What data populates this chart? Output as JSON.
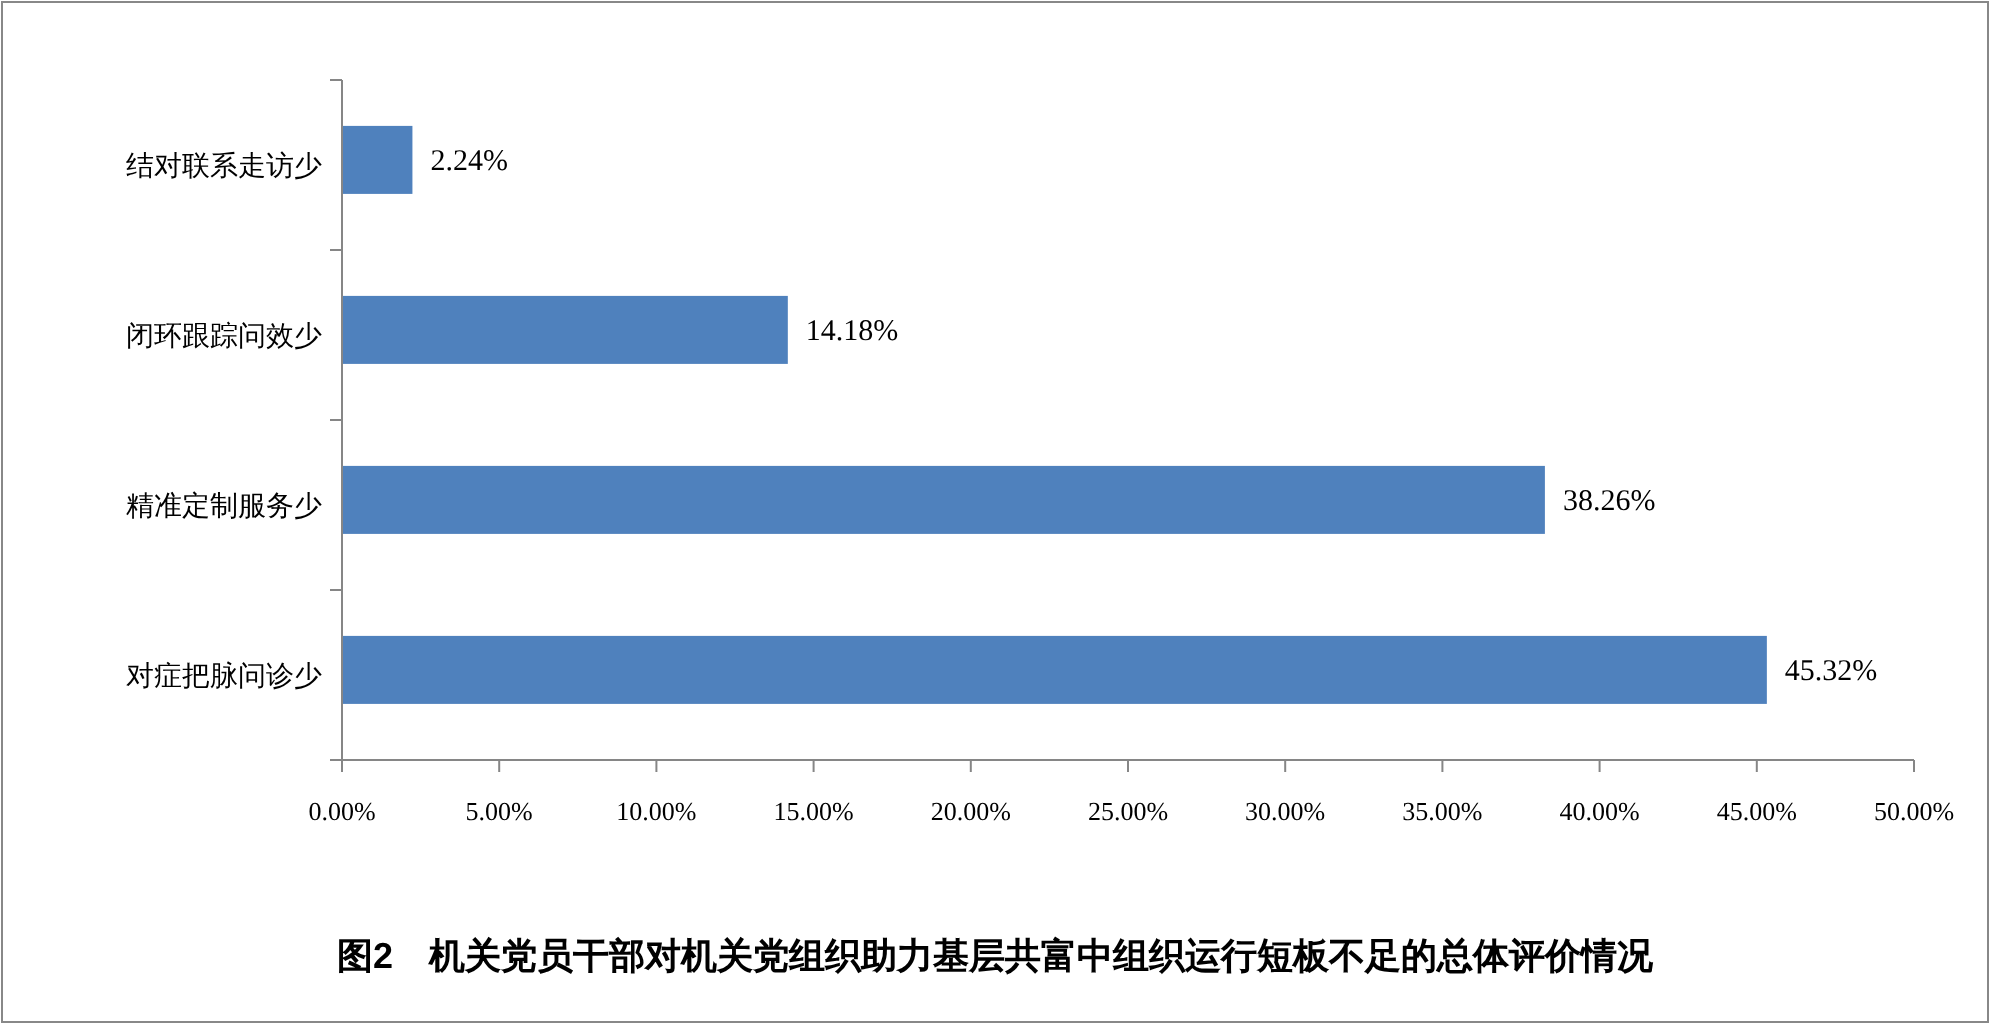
{
  "chart_data": {
    "type": "bar",
    "orientation": "horizontal",
    "title": "图2　机关党员干部对机关党组织助力基层共富中组织运行短板不足的总体评价情况",
    "categories": [
      "结对联系走访少",
      "闭环跟踪问效少",
      "精准定制服务少",
      "对症把脉问诊少"
    ],
    "values": [
      2.24,
      14.18,
      38.26,
      45.32
    ],
    "value_labels": [
      "2.24%",
      "14.18%",
      "38.26%",
      "45.32%"
    ],
    "color": "#4f81bd",
    "xlim": [
      0,
      50
    ],
    "xticks": [
      {
        "value": 0,
        "label": "0.00%"
      },
      {
        "value": 5,
        "label": "5.00%"
      },
      {
        "value": 10,
        "label": "10.00%"
      },
      {
        "value": 15,
        "label": "15.00%"
      },
      {
        "value": 20,
        "label": "20.00%"
      },
      {
        "value": 25,
        "label": "25.00%"
      },
      {
        "value": 30,
        "label": "30.00%"
      },
      {
        "value": 35,
        "label": "35.00%"
      },
      {
        "value": 40,
        "label": "40.00%"
      },
      {
        "value": 45,
        "label": "45.00%"
      },
      {
        "value": 50,
        "label": "50.00%"
      }
    ],
    "grid": false
  }
}
